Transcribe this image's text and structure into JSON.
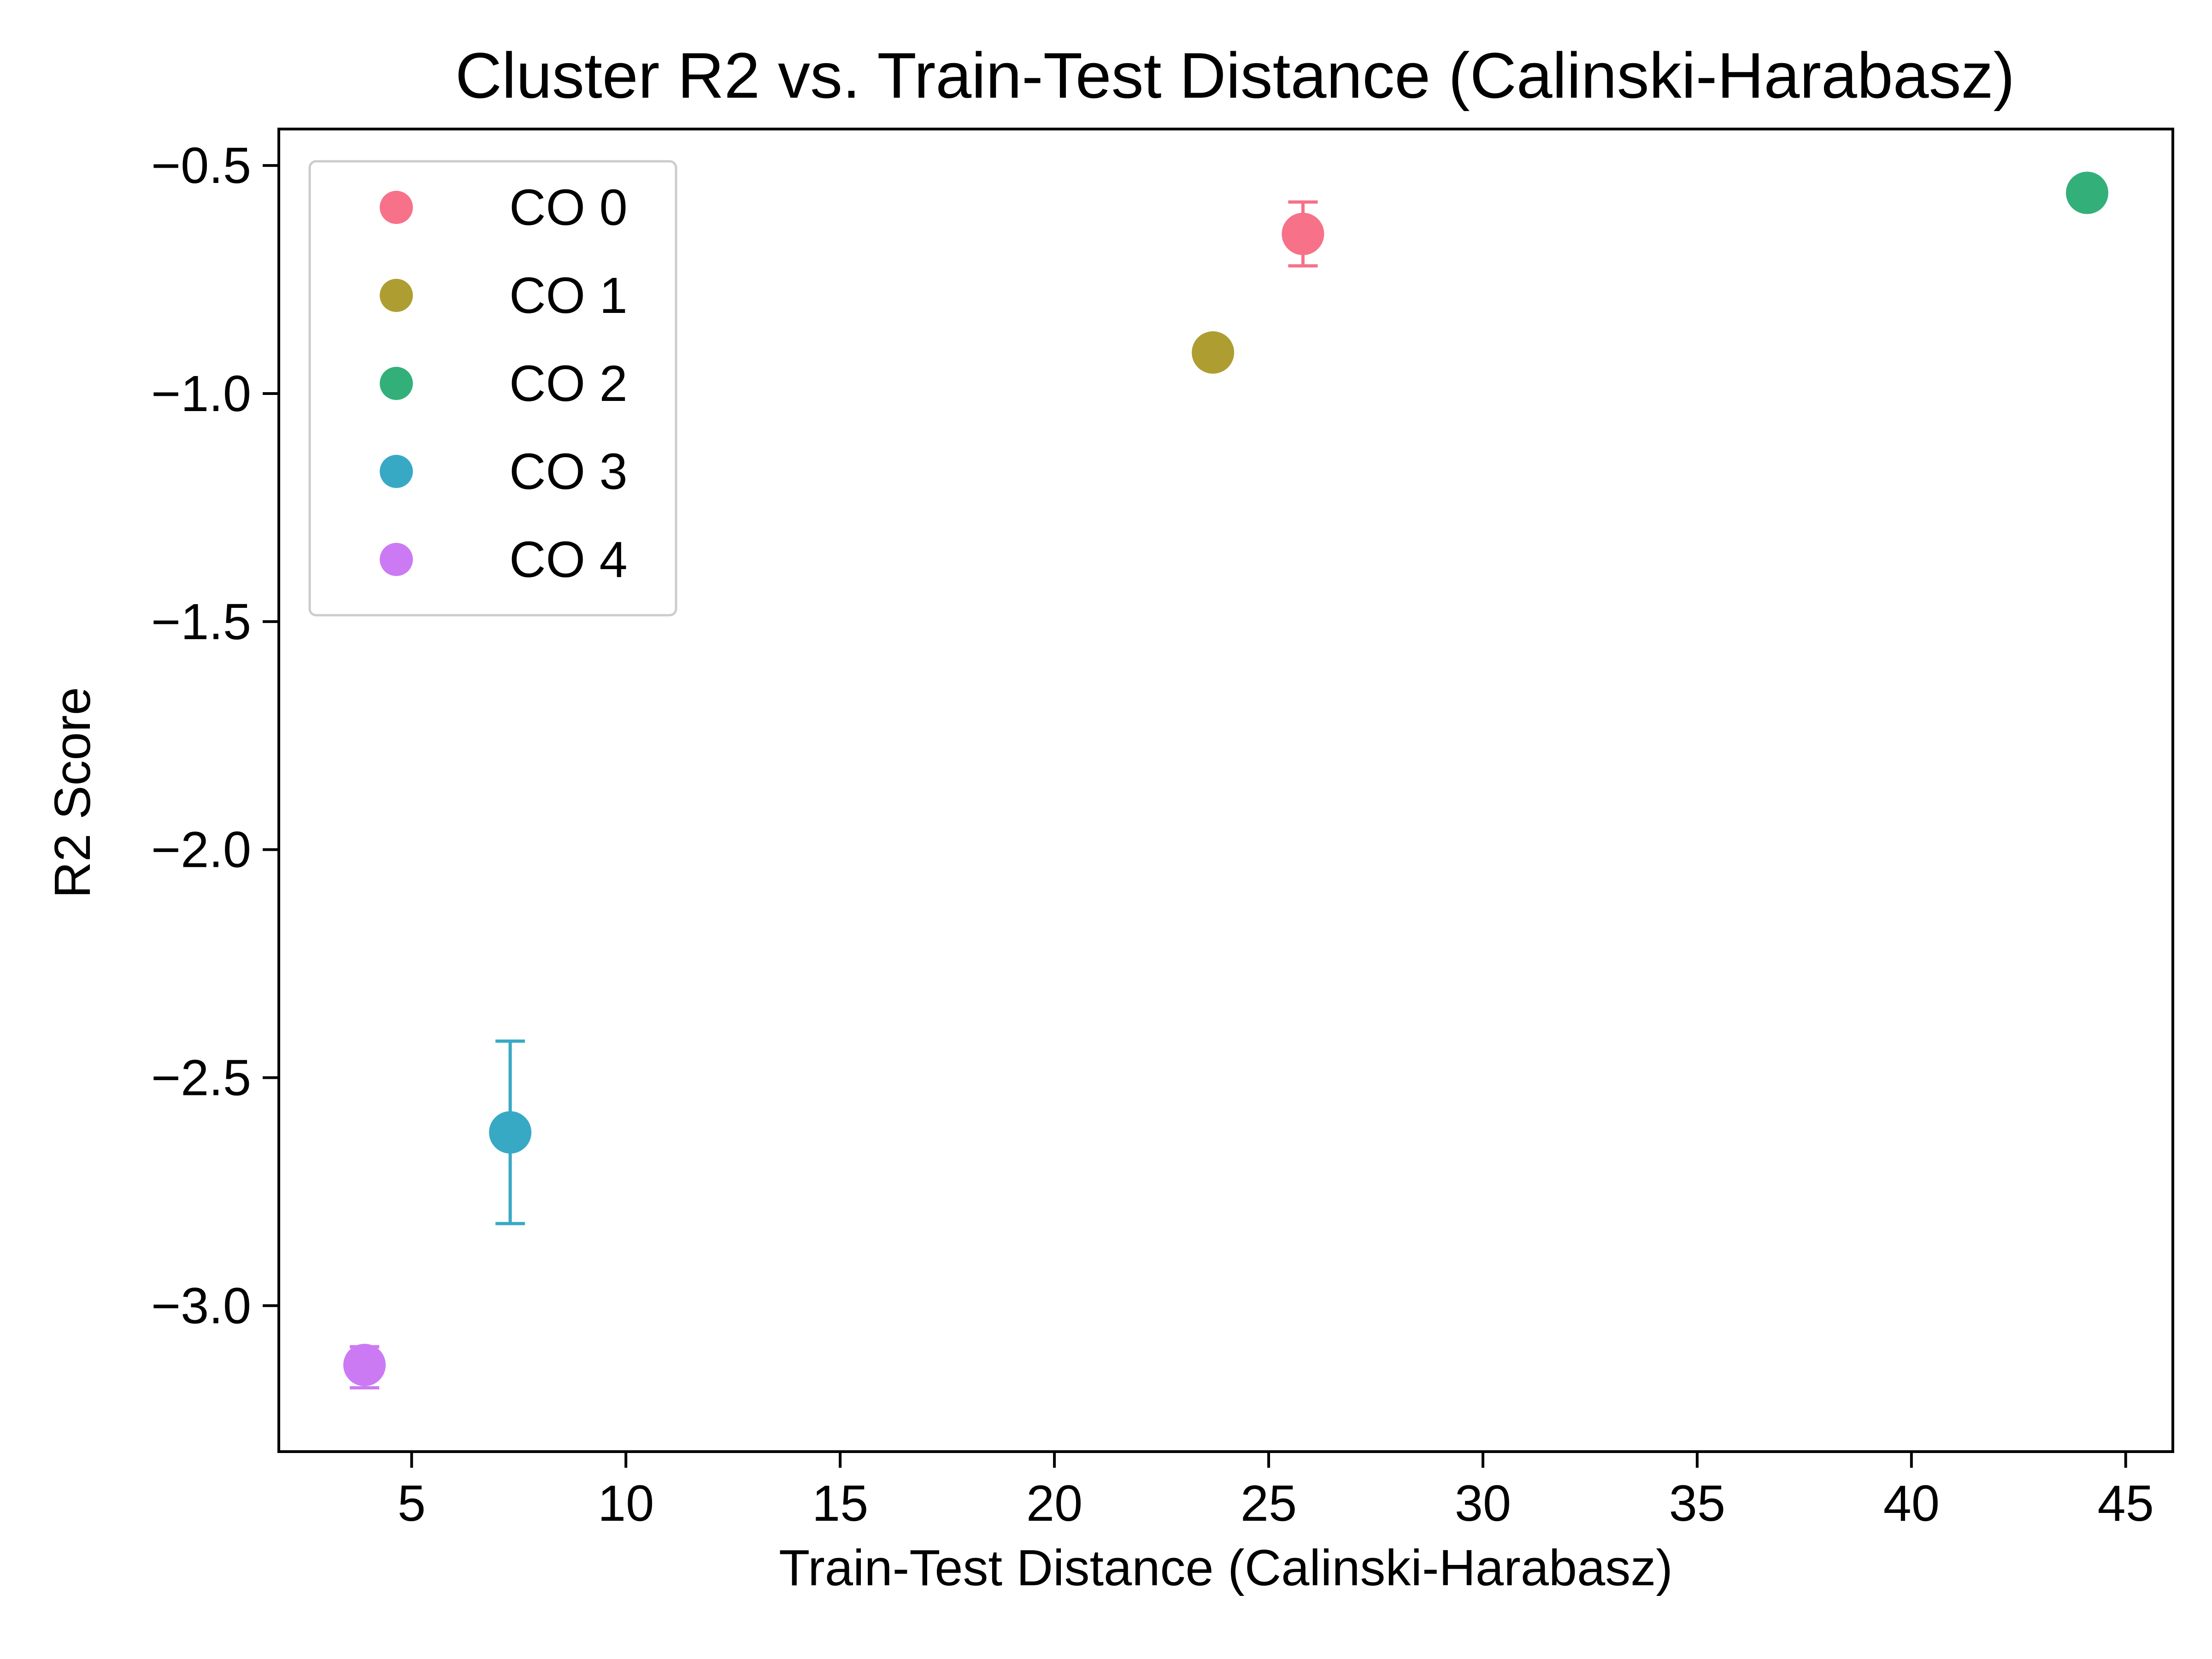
{
  "chart_data": {
    "type": "scatter",
    "title": "Cluster R2 vs. Train-Test Distance (Calinski-Harabasz)",
    "xlabel": "Train-Test Distance (Calinski-Harabasz)",
    "ylabel": "R2 Score",
    "xlim": [
      1.9,
      46.1
    ],
    "ylim": [
      -3.32,
      -0.42
    ],
    "xticks": [
      5,
      10,
      15,
      20,
      25,
      30,
      35,
      40,
      45
    ],
    "xtick_labels": [
      "5",
      "10",
      "15",
      "20",
      "25",
      "30",
      "35",
      "40",
      "45"
    ],
    "yticks": [
      -0.5,
      -1.0,
      -1.5,
      -2.0,
      -2.5,
      -3.0
    ],
    "ytick_labels": [
      "−0.5",
      "−1.0",
      "−1.5",
      "−2.0",
      "−2.5",
      "−3.0"
    ],
    "grid": false,
    "legend_position": "top-left",
    "series": [
      {
        "name": "CO 0",
        "color": "#f77189",
        "x": 25.8,
        "y": -0.65,
        "yerr_low": -0.72,
        "yerr_high": -0.58
      },
      {
        "name": "CO 1",
        "color": "#ae9d31",
        "x": 23.7,
        "y": -0.91,
        "yerr_low": null,
        "yerr_high": null
      },
      {
        "name": "CO 2",
        "color": "#33b07a",
        "x": 44.1,
        "y": -0.56,
        "yerr_low": null,
        "yerr_high": null
      },
      {
        "name": "CO 3",
        "color": "#38a9c5",
        "x": 7.3,
        "y": -2.62,
        "yerr_low": -2.82,
        "yerr_high": -2.42
      },
      {
        "name": "CO 4",
        "color": "#cc7af4",
        "x": 3.9,
        "y": -3.13,
        "yerr_low": -3.18,
        "yerr_high": -3.09
      }
    ]
  }
}
